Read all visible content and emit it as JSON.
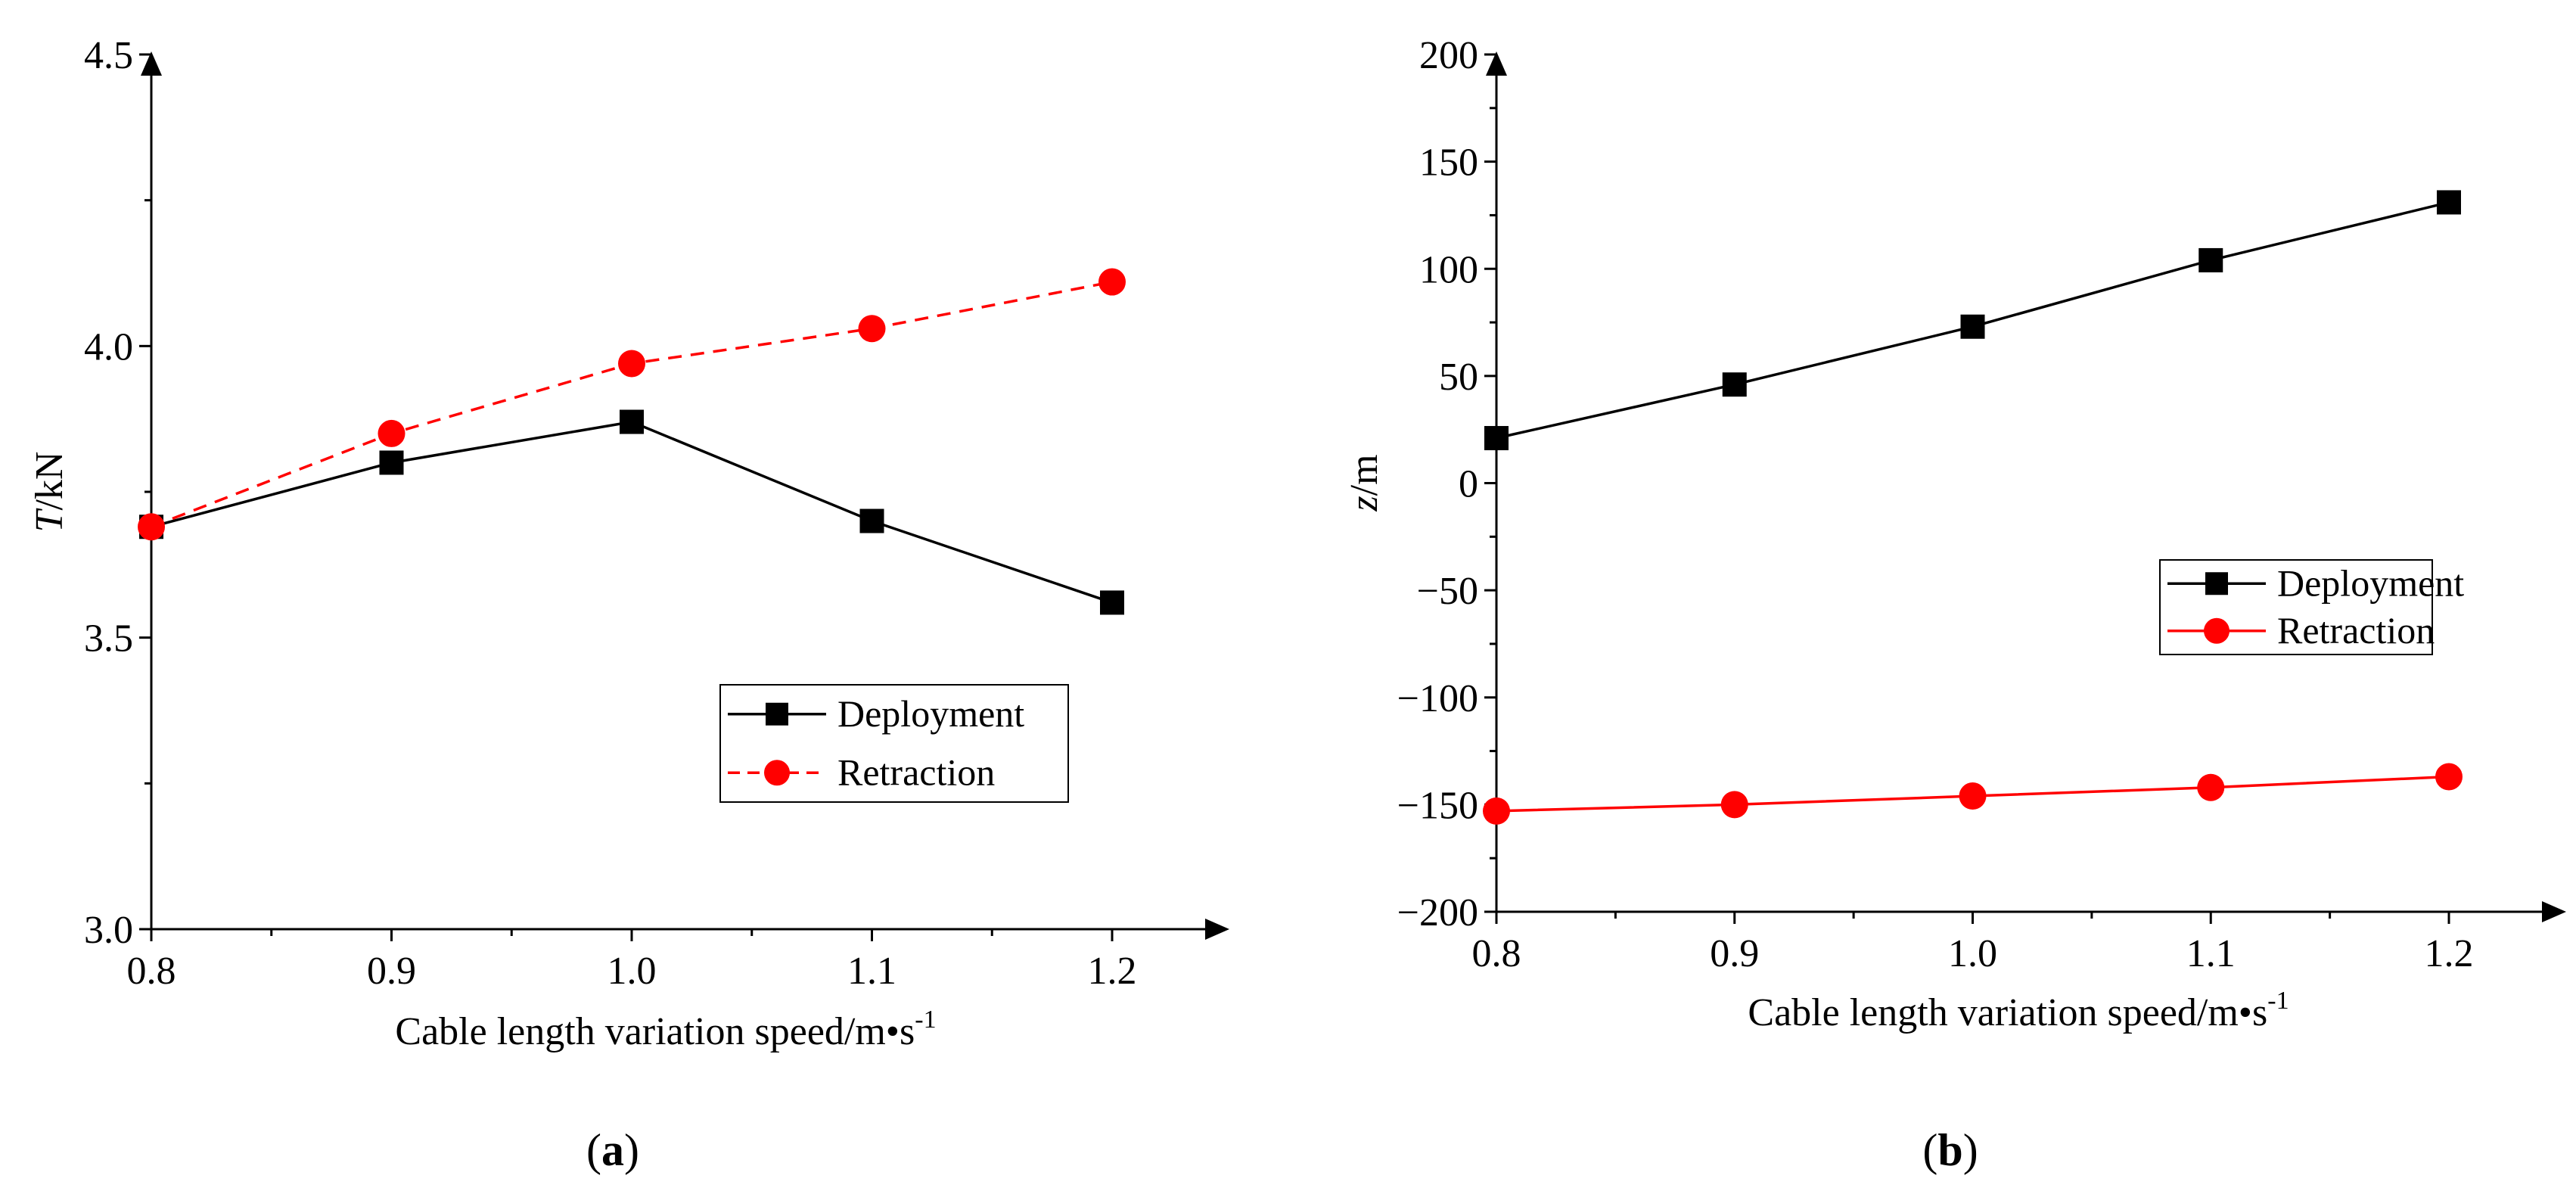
{
  "chart_data": [
    {
      "id": "a",
      "type": "line",
      "panel_label": "(a)",
      "panel_label_letter": "a",
      "xlabel": "Cable length variation speed/m•s",
      "xlabel_sup": "-1",
      "ylabel_var": "T",
      "ylabel_unit": "/kN",
      "xlim": [
        0.8,
        1.25
      ],
      "ylim": [
        3.0,
        4.5
      ],
      "xticks": [
        0.8,
        0.9,
        1.0,
        1.1,
        1.2
      ],
      "xtick_labels": [
        "0.8",
        "0.9",
        "1.0",
        "1.1",
        "1.2"
      ],
      "yticks": [
        3.0,
        3.5,
        4.0,
        4.5
      ],
      "ytick_labels": [
        "3.0",
        "3.5",
        "4.0",
        "4.5"
      ],
      "legend_position": "lower-right",
      "x": [
        0.8,
        0.9,
        1.0,
        1.1,
        1.2
      ],
      "series": [
        {
          "name": "Deployment",
          "color": "#000000",
          "marker": "square",
          "dash": "solid",
          "values": [
            3.69,
            3.8,
            3.87,
            3.7,
            3.56
          ]
        },
        {
          "name": "Retraction",
          "color": "#ff0000",
          "marker": "circle",
          "dash": "dashed",
          "values": [
            3.69,
            3.85,
            3.97,
            4.03,
            4.11
          ]
        }
      ]
    },
    {
      "id": "b",
      "type": "line",
      "panel_label": "(b)",
      "panel_label_letter": "b",
      "xlabel": "Cable length variation speed/m•s",
      "xlabel_sup": "-1",
      "ylabel_var": "z",
      "ylabel_unit": "/m",
      "xlim": [
        0.8,
        1.25
      ],
      "ylim": [
        -200,
        200
      ],
      "xticks": [
        0.8,
        0.9,
        1.0,
        1.1,
        1.2
      ],
      "xtick_labels": [
        "0.8",
        "0.9",
        "1.0",
        "1.1",
        "1.2"
      ],
      "yticks": [
        -200,
        -150,
        -100,
        -50,
        0,
        50,
        100,
        150,
        200
      ],
      "ytick_labels": [
        "−200",
        "−150",
        "−100",
        "−50",
        "0",
        "50",
        "100",
        "150",
        "200"
      ],
      "legend_position": "center-right",
      "x": [
        0.8,
        0.9,
        1.0,
        1.1,
        1.2
      ],
      "series": [
        {
          "name": "Deployment",
          "color": "#000000",
          "marker": "square",
          "dash": "solid",
          "values": [
            21,
            46,
            73,
            104,
            131
          ]
        },
        {
          "name": "Retraction",
          "color": "#ff0000",
          "marker": "circle",
          "dash": "solid",
          "values": [
            -153,
            -150,
            -146,
            -142,
            -137
          ]
        }
      ]
    }
  ]
}
